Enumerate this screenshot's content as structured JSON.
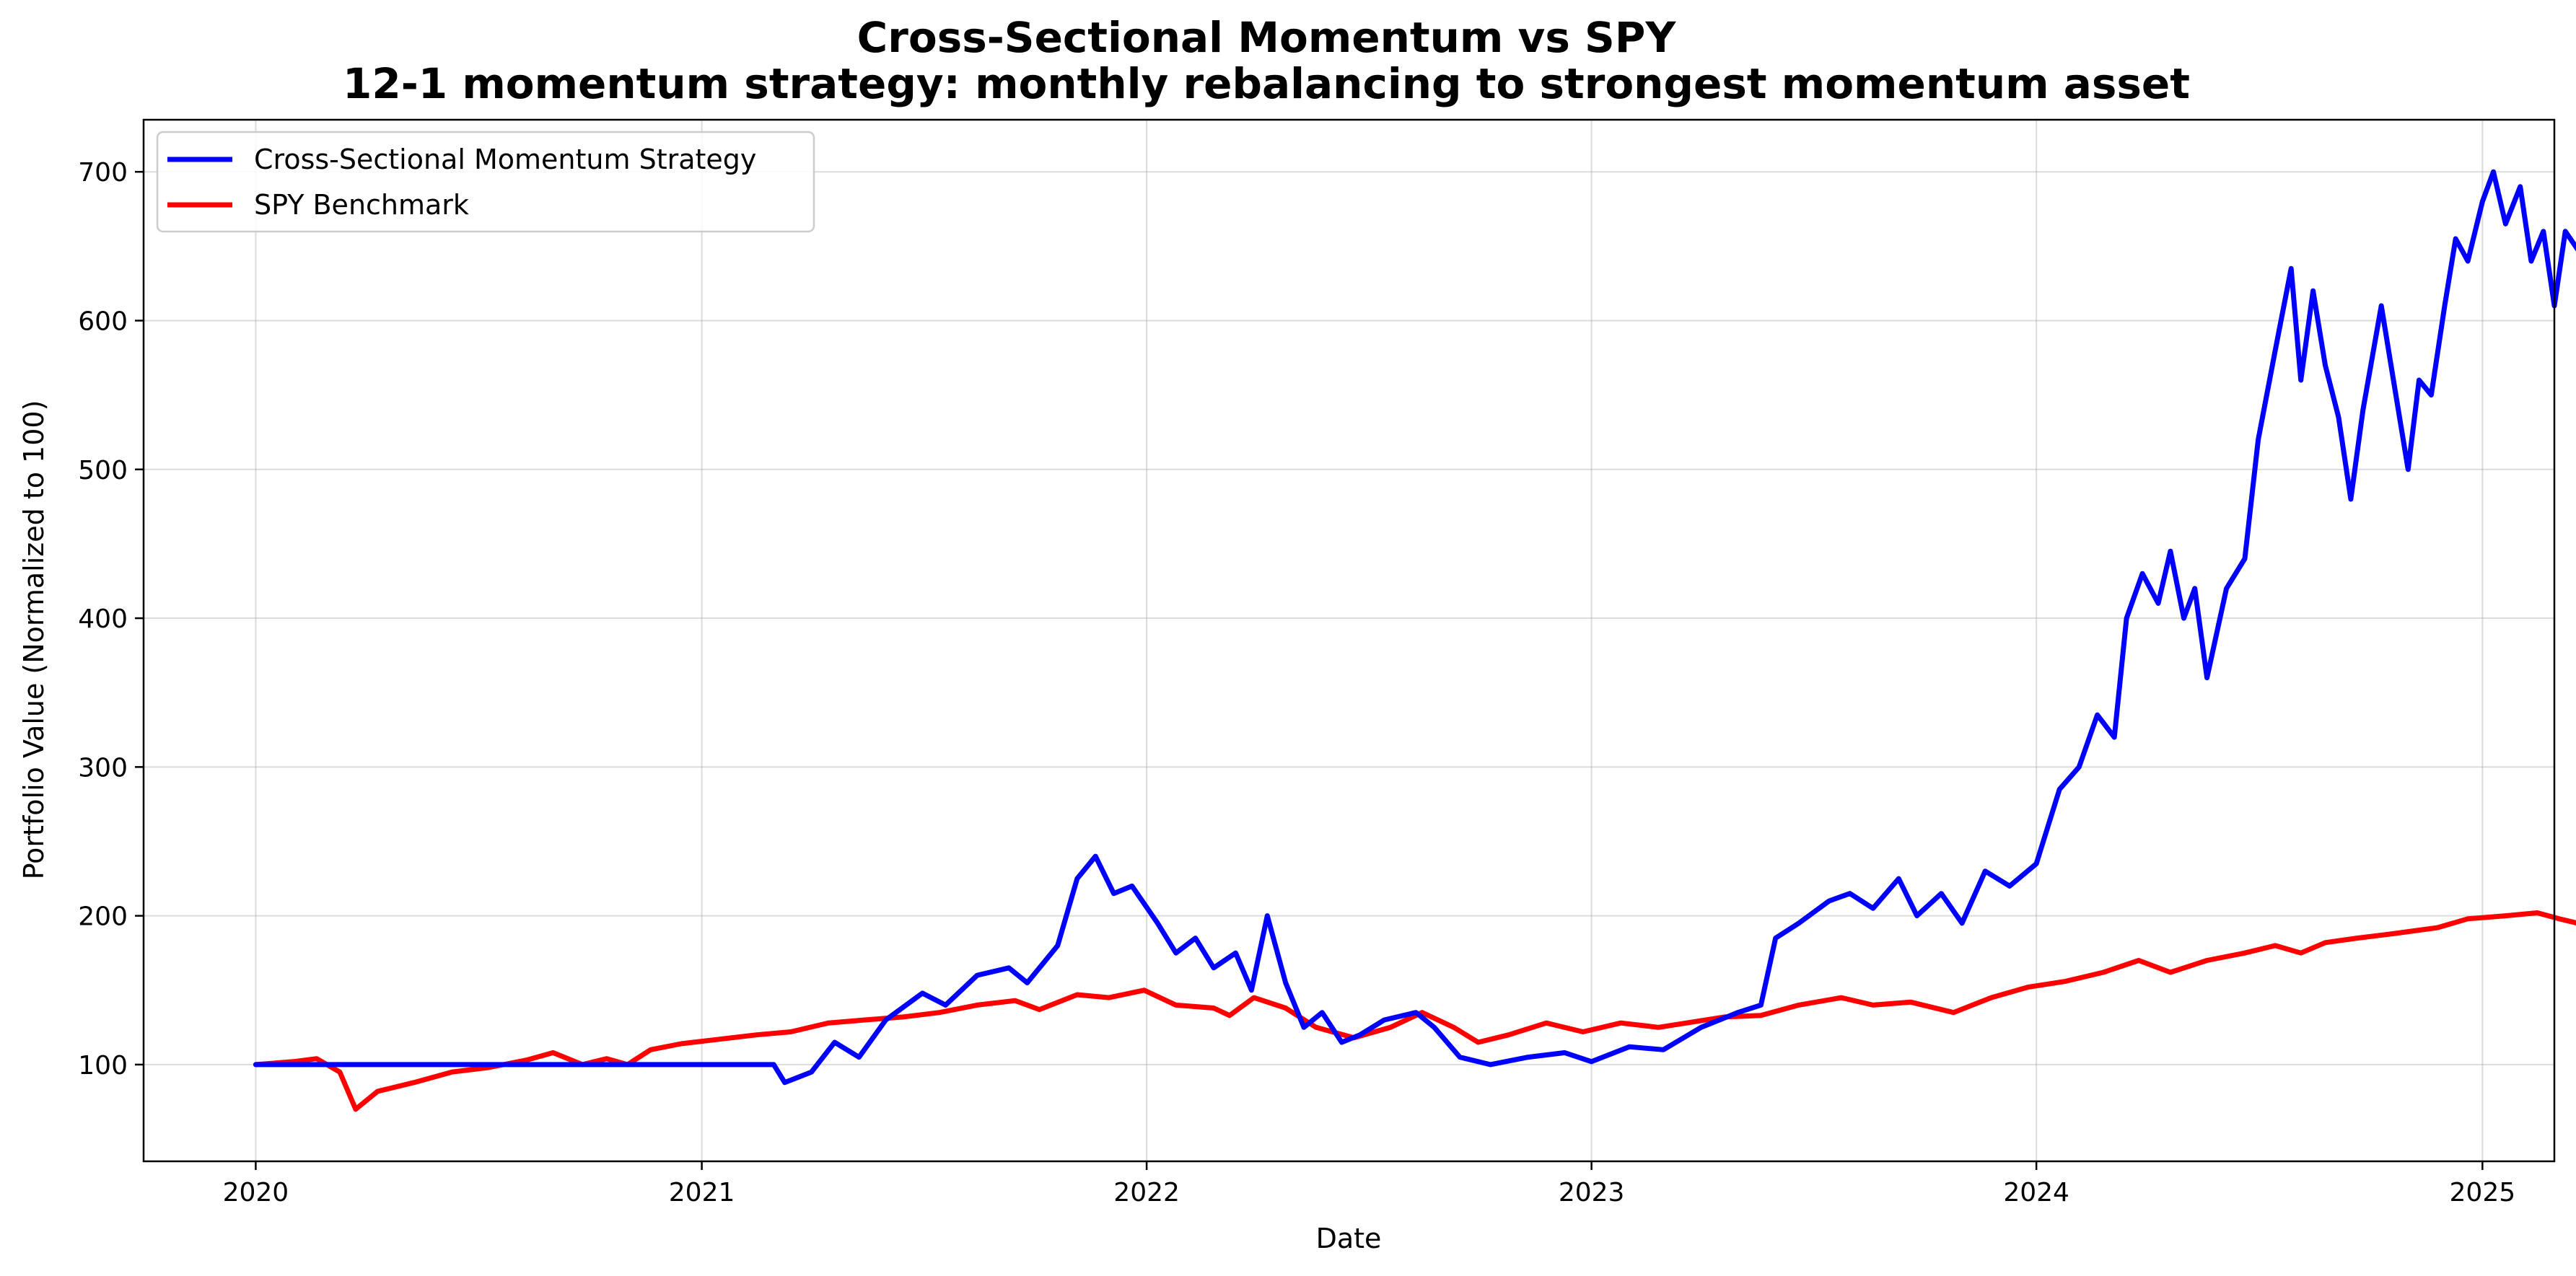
{
  "chart_data": {
    "type": "line",
    "title": "Cross-Sectional Momentum vs SPY",
    "subtitle": "12-1 momentum strategy: monthly rebalancing to strongest momentum asset",
    "xlabel": "Date",
    "ylabel": "Portfolio Value (Normalized to 100)",
    "xlim": [
      "2019-10-01",
      "2025-03-01"
    ],
    "ylim": [
      35,
      735
    ],
    "grid": true,
    "legend_position": "top-left",
    "x_ticks": [
      "2020",
      "2021",
      "2022",
      "2023",
      "2024",
      "2025"
    ],
    "y_ticks": [
      100,
      200,
      300,
      400,
      500,
      600,
      700
    ],
    "series": [
      {
        "name": "Cross-Sectional Momentum Strategy",
        "color": "#0000ff",
        "points": [
          [
            "2020-01-01",
            100
          ],
          [
            "2020-06-01",
            100
          ],
          [
            "2020-12-01",
            100
          ],
          [
            "2021-03-01",
            100
          ],
          [
            "2021-03-10",
            88
          ],
          [
            "2021-04-01",
            95
          ],
          [
            "2021-04-20",
            115
          ],
          [
            "2021-05-10",
            105
          ],
          [
            "2021-06-01",
            130
          ],
          [
            "2021-07-01",
            148
          ],
          [
            "2021-07-20",
            140
          ],
          [
            "2021-08-15",
            160
          ],
          [
            "2021-09-10",
            165
          ],
          [
            "2021-09-25",
            155
          ],
          [
            "2021-10-20",
            180
          ],
          [
            "2021-11-05",
            225
          ],
          [
            "2021-11-20",
            240
          ],
          [
            "2021-12-05",
            215
          ],
          [
            "2021-12-20",
            220
          ],
          [
            "2022-01-10",
            195
          ],
          [
            "2022-01-25",
            175
          ],
          [
            "2022-02-10",
            185
          ],
          [
            "2022-02-25",
            165
          ],
          [
            "2022-03-15",
            175
          ],
          [
            "2022-03-28",
            150
          ],
          [
            "2022-04-10",
            200
          ],
          [
            "2022-04-25",
            155
          ],
          [
            "2022-05-10",
            125
          ],
          [
            "2022-05-25",
            135
          ],
          [
            "2022-06-10",
            115
          ],
          [
            "2022-06-25",
            120
          ],
          [
            "2022-07-15",
            130
          ],
          [
            "2022-08-10",
            135
          ],
          [
            "2022-08-25",
            125
          ],
          [
            "2022-09-15",
            105
          ],
          [
            "2022-10-10",
            100
          ],
          [
            "2022-11-10",
            105
          ],
          [
            "2022-12-10",
            108
          ],
          [
            "2023-01-01",
            102
          ],
          [
            "2023-02-01",
            112
          ],
          [
            "2023-03-01",
            110
          ],
          [
            "2023-04-01",
            125
          ],
          [
            "2023-05-01",
            135
          ],
          [
            "2023-05-20",
            140
          ],
          [
            "2023-06-01",
            185
          ],
          [
            "2023-06-20",
            195
          ],
          [
            "2023-07-15",
            210
          ],
          [
            "2023-08-01",
            215
          ],
          [
            "2023-08-20",
            205
          ],
          [
            "2023-09-10",
            225
          ],
          [
            "2023-09-25",
            200
          ],
          [
            "2023-10-15",
            215
          ],
          [
            "2023-11-01",
            195
          ],
          [
            "2023-11-20",
            230
          ],
          [
            "2023-12-10",
            220
          ],
          [
            "2024-01-01",
            235
          ],
          [
            "2024-01-20",
            285
          ],
          [
            "2024-02-05",
            300
          ],
          [
            "2024-02-20",
            335
          ],
          [
            "2024-03-05",
            320
          ],
          [
            "2024-03-15",
            400
          ],
          [
            "2024-03-28",
            430
          ],
          [
            "2024-04-10",
            410
          ],
          [
            "2024-04-20",
            445
          ],
          [
            "2024-05-01",
            400
          ],
          [
            "2024-05-10",
            420
          ],
          [
            "2024-05-20",
            360
          ],
          [
            "2024-06-05",
            420
          ],
          [
            "2024-06-20",
            440
          ],
          [
            "2024-07-01",
            520
          ],
          [
            "2024-07-15",
            580
          ],
          [
            "2024-07-28",
            635
          ],
          [
            "2024-08-05",
            560
          ],
          [
            "2024-08-15",
            620
          ],
          [
            "2024-08-25",
            570
          ],
          [
            "2024-09-05",
            535
          ],
          [
            "2024-09-15",
            480
          ],
          [
            "2024-09-25",
            540
          ],
          [
            "2024-10-10",
            610
          ],
          [
            "2024-10-20",
            560
          ],
          [
            "2024-11-01",
            500
          ],
          [
            "2024-11-10",
            560
          ],
          [
            "2024-11-20",
            550
          ],
          [
            "2024-12-01",
            610
          ],
          [
            "2024-12-10",
            655
          ],
          [
            "2024-12-20",
            640
          ],
          [
            "2025-01-01",
            680
          ],
          [
            "2025-01-10",
            700
          ],
          [
            "2025-01-20",
            665
          ],
          [
            "2025-02-01",
            690
          ],
          [
            "2025-02-10",
            640
          ],
          [
            "2025-02-20",
            660
          ],
          [
            "2025-03-01",
            610
          ],
          [
            "2025-03-10",
            660
          ],
          [
            "2025-03-20",
            648
          ]
        ]
      },
      {
        "name": "SPY Benchmark",
        "color": "#ff0000",
        "points": [
          [
            "2020-01-01",
            100
          ],
          [
            "2020-02-01",
            102
          ],
          [
            "2020-02-20",
            104
          ],
          [
            "2020-03-10",
            95
          ],
          [
            "2020-03-23",
            70
          ],
          [
            "2020-04-10",
            82
          ],
          [
            "2020-05-10",
            88
          ],
          [
            "2020-06-10",
            95
          ],
          [
            "2020-07-10",
            98
          ],
          [
            "2020-08-10",
            103
          ],
          [
            "2020-09-01",
            108
          ],
          [
            "2020-09-25",
            100
          ],
          [
            "2020-10-15",
            104
          ],
          [
            "2020-11-01",
            100
          ],
          [
            "2020-11-20",
            110
          ],
          [
            "2020-12-15",
            114
          ],
          [
            "2021-01-15",
            117
          ],
          [
            "2021-02-15",
            120
          ],
          [
            "2021-03-15",
            122
          ],
          [
            "2021-04-15",
            128
          ],
          [
            "2021-05-15",
            130
          ],
          [
            "2021-06-15",
            132
          ],
          [
            "2021-07-15",
            135
          ],
          [
            "2021-08-15",
            140
          ],
          [
            "2021-09-15",
            143
          ],
          [
            "2021-10-05",
            137
          ],
          [
            "2021-11-05",
            147
          ],
          [
            "2021-12-01",
            145
          ],
          [
            "2021-12-30",
            150
          ],
          [
            "2022-01-25",
            140
          ],
          [
            "2022-02-25",
            138
          ],
          [
            "2022-03-10",
            133
          ],
          [
            "2022-03-30",
            145
          ],
          [
            "2022-04-25",
            138
          ],
          [
            "2022-05-20",
            125
          ],
          [
            "2022-06-20",
            118
          ],
          [
            "2022-07-20",
            125
          ],
          [
            "2022-08-15",
            135
          ],
          [
            "2022-09-10",
            125
          ],
          [
            "2022-09-30",
            115
          ],
          [
            "2022-10-25",
            120
          ],
          [
            "2022-11-25",
            128
          ],
          [
            "2022-12-25",
            122
          ],
          [
            "2023-01-25",
            128
          ],
          [
            "2023-02-25",
            125
          ],
          [
            "2023-03-20",
            128
          ],
          [
            "2023-04-20",
            132
          ],
          [
            "2023-05-20",
            133
          ],
          [
            "2023-06-20",
            140
          ],
          [
            "2023-07-25",
            145
          ],
          [
            "2023-08-20",
            140
          ],
          [
            "2023-09-20",
            142
          ],
          [
            "2023-10-25",
            135
          ],
          [
            "2023-11-25",
            145
          ],
          [
            "2023-12-25",
            152
          ],
          [
            "2024-01-25",
            156
          ],
          [
            "2024-02-25",
            162
          ],
          [
            "2024-03-25",
            170
          ],
          [
            "2024-04-20",
            162
          ],
          [
            "2024-05-20",
            170
          ],
          [
            "2024-06-20",
            175
          ],
          [
            "2024-07-15",
            180
          ],
          [
            "2024-08-05",
            175
          ],
          [
            "2024-08-25",
            182
          ],
          [
            "2024-09-20",
            185
          ],
          [
            "2024-10-20",
            188
          ],
          [
            "2024-11-25",
            192
          ],
          [
            "2024-12-20",
            198
          ],
          [
            "2025-01-20",
            200
          ],
          [
            "2025-02-15",
            202
          ],
          [
            "2025-03-05",
            198
          ],
          [
            "2025-03-20",
            195
          ]
        ]
      }
    ]
  }
}
